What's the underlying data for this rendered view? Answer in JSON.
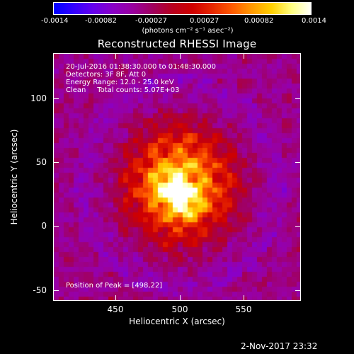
{
  "colorbar": {
    "tick_labels": [
      "-0.0014",
      "-0.00082",
      "-0.00027",
      "0.00027",
      "0.00082",
      "0.0014"
    ],
    "units": "(photons cm⁻² s⁻¹ asec⁻²)",
    "colormap": [
      "#0000ff",
      "#3300ff",
      "#6600ee",
      "#8a00c8",
      "#9a00a0",
      "#a10060",
      "#b80020",
      "#d00000",
      "#e82800",
      "#ff5a00",
      "#ff9a00",
      "#ffd000",
      "#ffff80",
      "#ffffff"
    ]
  },
  "title": "Reconstructed RHESSI Image",
  "info": {
    "time_range": "20-Jul-2016 01:38:30.000 to 01:48:30.000",
    "detectors": "Detectors: 3F 8F, Att 0",
    "energy": "Energy Range: 12.0 - 25.0 keV",
    "clean": "Clean     Total counts: 5.07E+03"
  },
  "peak_text": "Position of Peak = [498,22]",
  "x_axis": {
    "label": "Heliocentric X (arcsec)",
    "ticks": [
      "450",
      "500",
      "550"
    ]
  },
  "y_axis": {
    "label": "Heliocentric Y (arcsec)",
    "ticks": [
      "100",
      "50",
      "0",
      "-50"
    ]
  },
  "timestamp": "2-Nov-2017 23:32"
}
